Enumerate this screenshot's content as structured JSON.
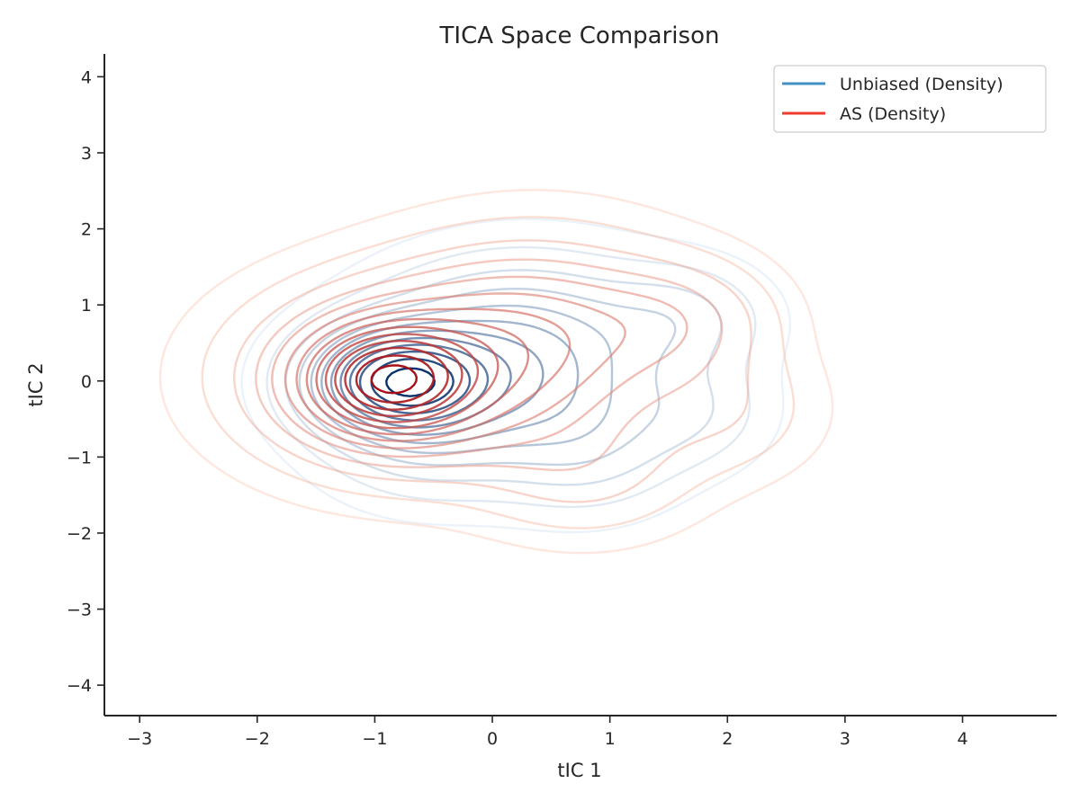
{
  "chart_data": {
    "type": "contour",
    "title": "TICA Space Comparison",
    "xlabel": "tIC 1",
    "ylabel": "tIC 2",
    "xlim": [
      -3.3,
      4.8
    ],
    "ylim": [
      -4.4,
      4.3
    ],
    "xticks": [
      -3,
      -2,
      -1,
      0,
      1,
      2,
      3,
      4
    ],
    "yticks": [
      -4,
      -3,
      -2,
      -1,
      0,
      1,
      2,
      3,
      4
    ],
    "xtick_labels": [
      "−3",
      "−2",
      "−1",
      "0",
      "1",
      "2",
      "3",
      "4"
    ],
    "ytick_labels": [
      "−4",
      "−3",
      "−2",
      "−1",
      "0",
      "1",
      "2",
      "3",
      "4"
    ],
    "grid": false,
    "legend_position": "upper-right",
    "series": [
      {
        "name": "Unbiased (Density)",
        "color": "#4292c6",
        "colormap": "Blues",
        "peak": [
          -0.8,
          0.0
        ],
        "levels": 12
      },
      {
        "name": "AS (Density)",
        "color": "#ef3b2c",
        "colormap": "Reds",
        "peak": [
          -0.8,
          0.0
        ],
        "levels": 14
      }
    ]
  }
}
